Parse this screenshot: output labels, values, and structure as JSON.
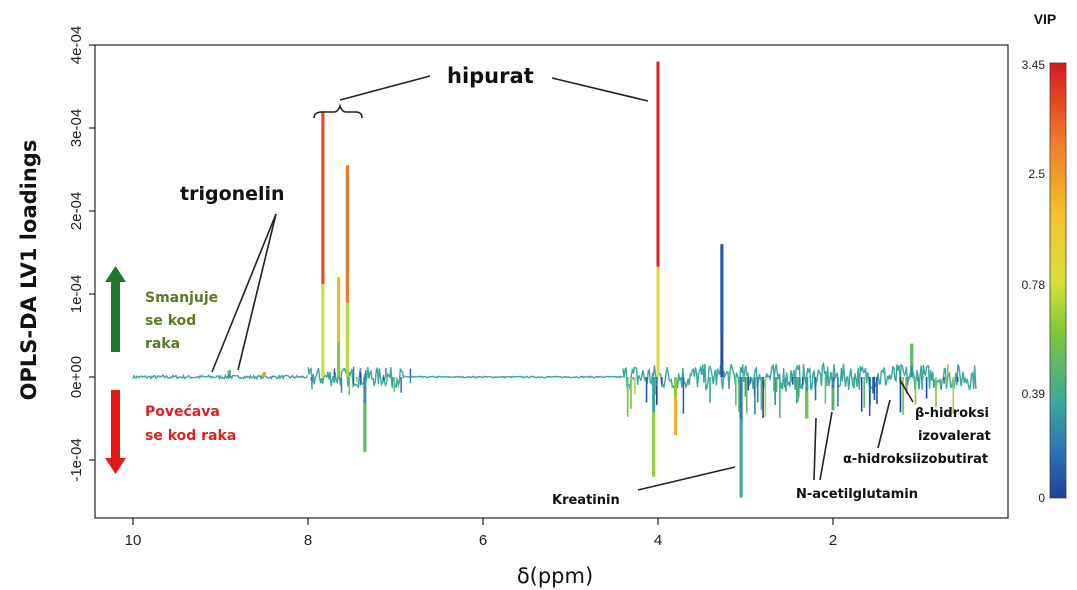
{
  "chart_data": {
    "type": "line",
    "xlabel": "δ(ppm)",
    "ylabel": "OPLS-DA LV1 loadings",
    "xlim": [
      10.2,
      0.25
    ],
    "ylim": [
      -0.00014,
      0.0004
    ],
    "x_ticks": [
      "10",
      "8",
      "6",
      "4",
      "2"
    ],
    "x_tick_values": [
      10,
      8,
      6,
      4,
      2
    ],
    "y_ticks": [
      "4e-04",
      "3e-04",
      "2e-04",
      "1e-04",
      "0e+00",
      "-1e-04"
    ],
    "y_tick_values": [
      0.0004,
      0.0003,
      0.0002,
      0.0001,
      0,
      -0.0001
    ],
    "peaks": [
      {
        "x": 7.83,
        "y": 0.00032,
        "vip": 3.2
      },
      {
        "x": 7.65,
        "y": 0.00012,
        "vip": 2.5
      },
      {
        "x": 7.55,
        "y": 0.000255,
        "vip": 3.0
      },
      {
        "x": 8.9,
        "y": 8e-06,
        "vip": 1.2
      },
      {
        "x": 8.5,
        "y": 6e-06,
        "vip": 2.8
      },
      {
        "x": 7.35,
        "y": -9e-05,
        "vip": 1.3
      },
      {
        "x": 4.0,
        "y": 0.00038,
        "vip": 3.4
      },
      {
        "x": 4.05,
        "y": -0.00012,
        "vip": 1.6
      },
      {
        "x": 3.8,
        "y": -7e-05,
        "vip": 2.6
      },
      {
        "x": 3.27,
        "y": 0.00016,
        "vip": 0.3
      },
      {
        "x": 3.05,
        "y": -0.000145,
        "vip": 1.0
      },
      {
        "x": 2.3,
        "y": -5e-05,
        "vip": 1.4
      },
      {
        "x": 2.0,
        "y": -4e-05,
        "vip": 1.2
      },
      {
        "x": 1.1,
        "y": 4e-05,
        "vip": 1.3
      }
    ],
    "colorbar": {
      "title": "VIP",
      "ticks": [
        "3.45",
        "2.5",
        "0.78",
        "0.39",
        "0"
      ],
      "tick_values": [
        3.45,
        2.5,
        0.78,
        0.39,
        0
      ],
      "colors": [
        "#d7191c",
        "#f07b2a",
        "#f5c12c",
        "#d9e23a",
        "#7cc83c",
        "#3aa89a",
        "#2b6fb6",
        "#1f3f9a"
      ]
    },
    "annotations": {
      "hipurat": "hipurat",
      "trigonelin": "trigonelin",
      "kreatinin": "Kreatinin",
      "n_acetil": "N-acetilglutamin",
      "b_hidroksi_1": "β-hidroksi",
      "b_hidroksi_2": "izovalerat",
      "a_hidroksi": "α-hidroksiizobutirat"
    },
    "arrows": {
      "up": {
        "lines": [
          "Smanjuje",
          "se kod",
          "raka"
        ],
        "color": "#5a7a24",
        "arrow_color": "#1a7a2e"
      },
      "down": {
        "lines": [
          "Povećava",
          "se kod raka"
        ],
        "color": "#e02020",
        "arrow_color": "#e81818"
      }
    }
  }
}
